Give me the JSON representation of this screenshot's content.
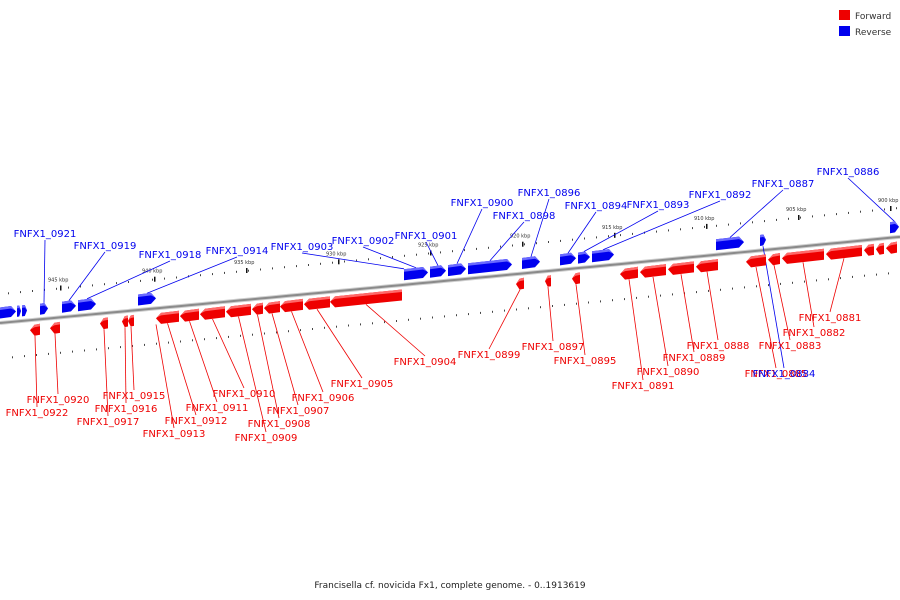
{
  "caption": "Francisella cf. novicida Fx1, complete genome. - 0..1913619",
  "legend": [
    {
      "label": "Forward",
      "color": "#ee0000"
    },
    {
      "label": "Reverse",
      "color": "#0000ee"
    }
  ],
  "colors": {
    "forward": "#ee0000",
    "forward_top": "#ff6a6a",
    "reverse": "#0000ee",
    "reverse_top": "#6a6aff",
    "backbone": "#8a8a8a"
  },
  "kbp_ticks": [
    "900 kbp",
    "905 kbp",
    "910 kbp",
    "915 kbp",
    "920 kbp",
    "925 kbp",
    "930 kbp",
    "935 kbp",
    "940 kbp",
    "945 kbp"
  ],
  "genes_forward": [
    "FNFX1_0881",
    "FNFX1_0882",
    "FNFX1_0883",
    "FNFX1_0885",
    "FNFX1_0888",
    "FNFX1_0889",
    "FNFX1_0890",
    "FNFX1_0891",
    "FNFX1_0895",
    "FNFX1_0897",
    "FNFX1_0899",
    "FNFX1_0904",
    "FNFX1_0905",
    "FNFX1_0906",
    "FNFX1_0907",
    "FNFX1_0908",
    "FNFX1_0909",
    "FNFX1_0910",
    "FNFX1_0911",
    "FNFX1_0912",
    "FNFX1_0913",
    "FNFX1_0915",
    "FNFX1_0916",
    "FNFX1_0917",
    "FNFX1_0920",
    "FNFX1_0922"
  ],
  "genes_reverse": [
    "FNFX1_0884",
    "FNFX1_0886",
    "FNFX1_0887",
    "FNFX1_0892",
    "FNFX1_0893",
    "FNFX1_0894",
    "FNFX1_0896",
    "FNFX1_0898",
    "FNFX1_0900",
    "FNFX1_0901",
    "FNFX1_0902",
    "FNFX1_0903",
    "FNFX1_0914",
    "FNFX1_0918",
    "FNFX1_0919",
    "FNFX1_0921"
  ]
}
